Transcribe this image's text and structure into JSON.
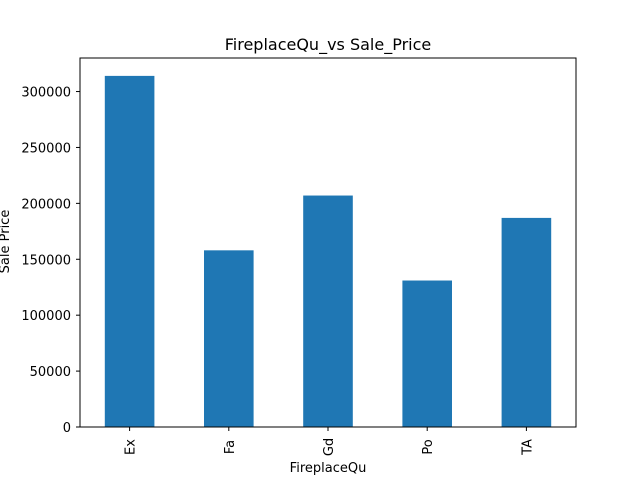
{
  "chart_data": {
    "type": "bar",
    "title": "FireplaceQu_vs Sale_Price",
    "xlabel": "FireplaceQu",
    "ylabel": "Sale Price",
    "categories": [
      "Ex",
      "Fa",
      "Gd",
      "Po",
      "TA"
    ],
    "values": [
      314000,
      158000,
      207000,
      131000,
      187000
    ],
    "ylim": [
      0,
      330000
    ],
    "yticks": [
      0,
      50000,
      100000,
      150000,
      200000,
      250000,
      300000
    ],
    "ytick_labels": [
      "0",
      "50000",
      "100000",
      "150000",
      "200000",
      "250000",
      "300000"
    ],
    "bar_color": "#1f77b4",
    "grid": false,
    "legend": "none"
  }
}
